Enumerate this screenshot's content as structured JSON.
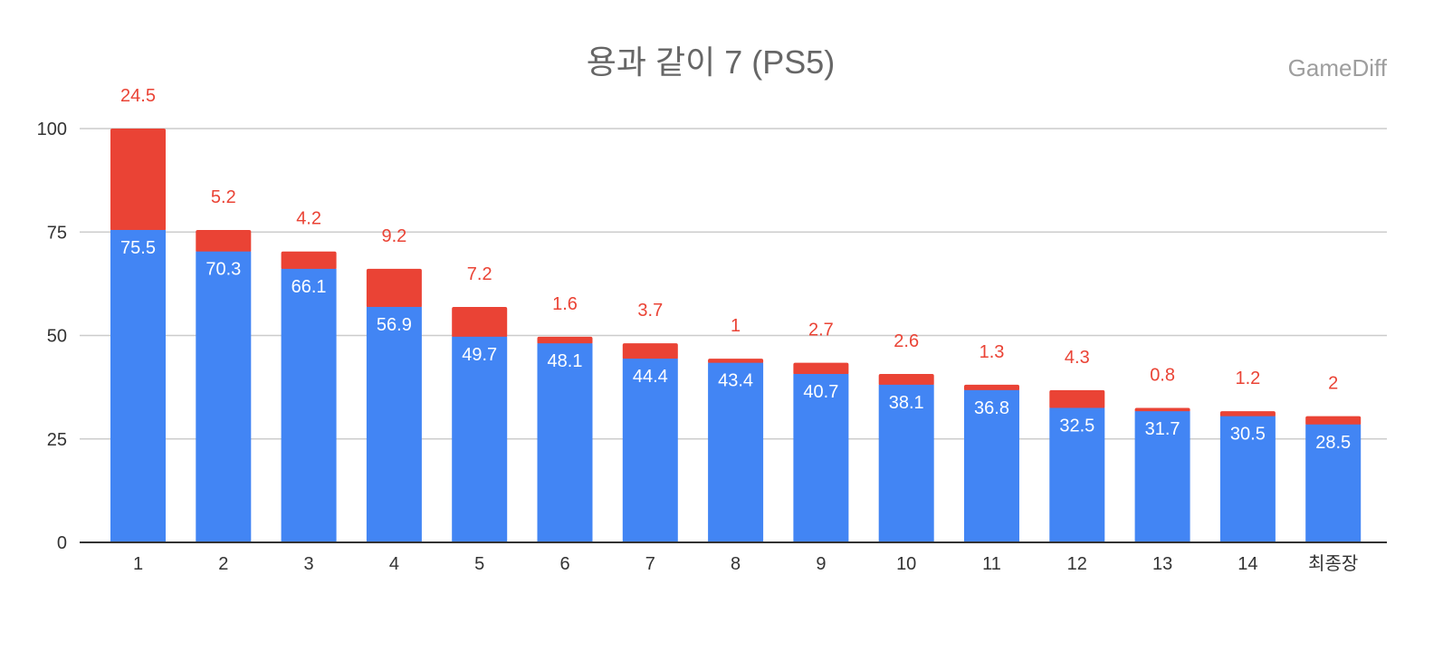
{
  "header": {
    "title": "용과 같이 7 (PS5)",
    "watermark": "GameDiff"
  },
  "colors": {
    "base": "#4285f4",
    "diff": "#ea4335",
    "diff_label": "#ea4335",
    "grid": "#cccccc",
    "axis": "#333333"
  },
  "chart_data": {
    "type": "bar",
    "stacked": true,
    "title": "용과 같이 7 (PS5)",
    "xlabel": "",
    "ylabel": "",
    "ylim": [
      0,
      100
    ],
    "yticks": [
      0,
      25,
      50,
      75,
      100
    ],
    "grid": true,
    "categories": [
      "1",
      "2",
      "3",
      "4",
      "5",
      "6",
      "7",
      "8",
      "9",
      "10",
      "11",
      "12",
      "13",
      "14",
      "최종장"
    ],
    "series": [
      {
        "name": "base",
        "values": [
          75.5,
          70.3,
          66.1,
          56.9,
          49.7,
          48.1,
          44.4,
          43.4,
          40.7,
          38.1,
          36.8,
          32.5,
          31.7,
          30.5,
          28.5
        ]
      },
      {
        "name": "diff",
        "values": [
          24.5,
          5.2,
          4.2,
          9.2,
          7.2,
          1.6,
          3.7,
          1,
          2.7,
          2.6,
          1.3,
          4.3,
          0.8,
          1.2,
          2
        ]
      }
    ]
  }
}
